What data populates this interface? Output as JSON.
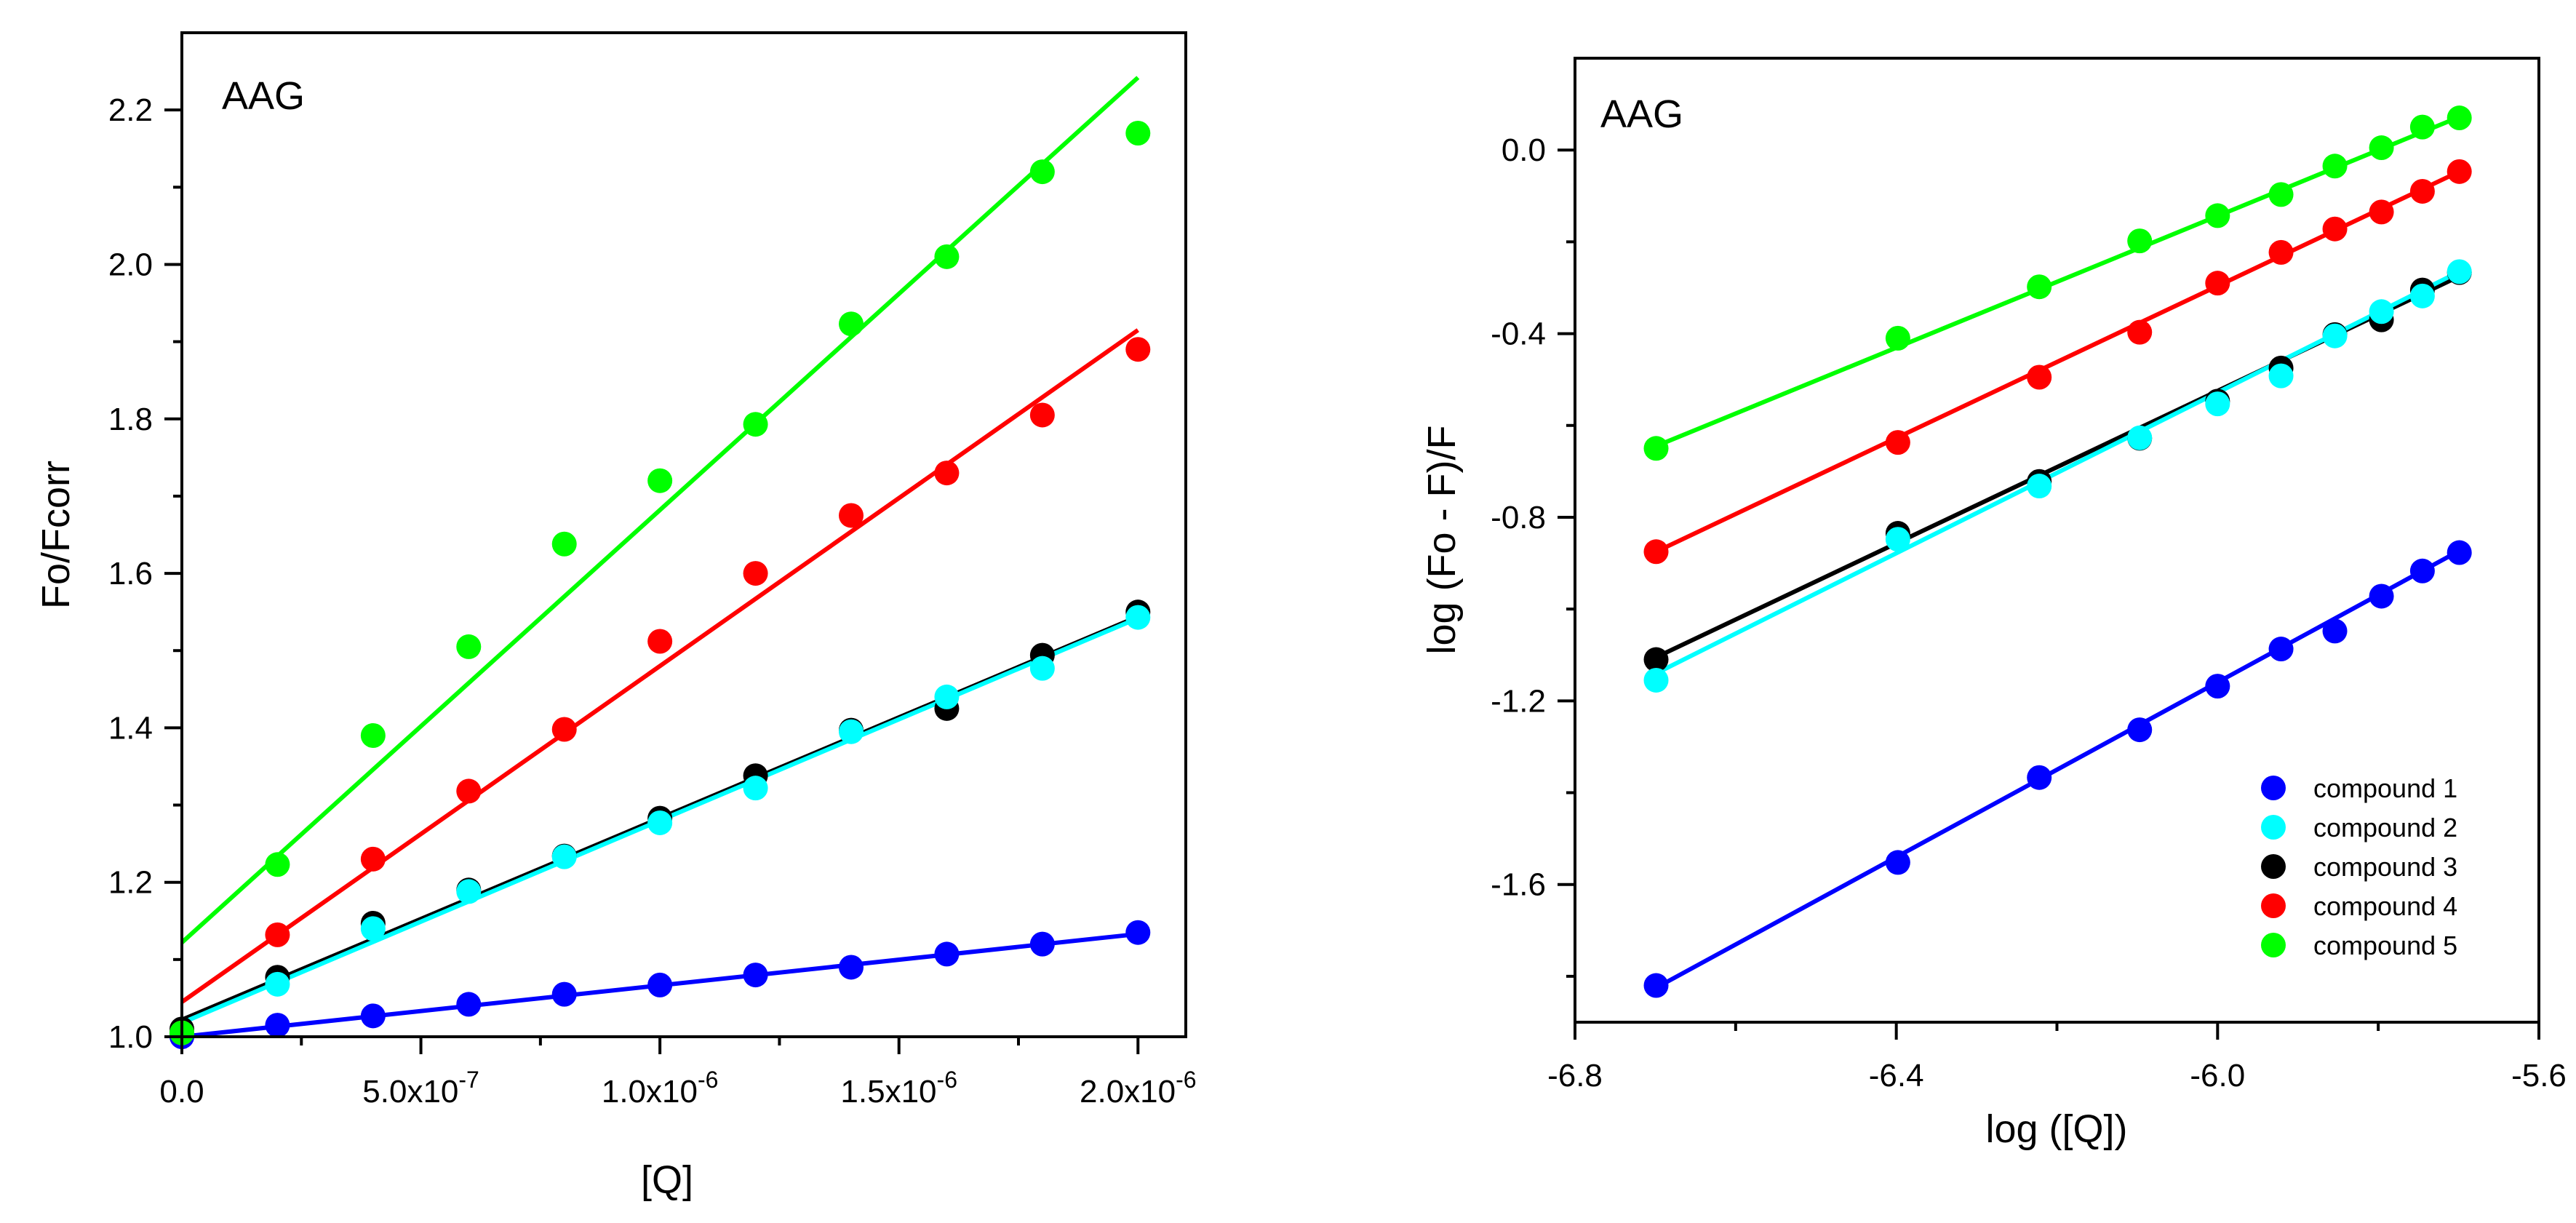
{
  "chart_data": [
    {
      "type": "scatter",
      "title": "AAG",
      "xlabel": "[Q]",
      "ylabel": "Fo/Fcorr",
      "xlim": [
        0,
        2.1e-06
      ],
      "ylim": [
        1.0,
        2.3
      ],
      "x_ticks": [
        0,
        5e-07,
        1e-06,
        1.5e-06,
        2e-06
      ],
      "x_tick_labels": [
        {
          "mantissa": "0.0",
          "exp": ""
        },
        {
          "mantissa": "5.0x10",
          "exp": "-7"
        },
        {
          "mantissa": "1.0x10",
          "exp": "-6"
        },
        {
          "mantissa": "1.5x10",
          "exp": "-6"
        },
        {
          "mantissa": "2.0x10",
          "exp": "-6"
        }
      ],
      "y_ticks": [
        1.0,
        1.2,
        1.4,
        1.6,
        1.8,
        2.0,
        2.2
      ],
      "y_tick_labels": [
        "1.0",
        "1.2",
        "1.4",
        "1.6",
        "1.8",
        "2.0",
        "2.2"
      ],
      "x": [
        0,
        2e-07,
        4e-07,
        6e-07,
        8e-07,
        1e-06,
        1.2e-06,
        1.4e-06,
        1.6e-06,
        1.8e-06,
        2e-06
      ],
      "series": [
        {
          "name": "compound 1",
          "color": "#0000ff",
          "values": [
            1.0,
            1.015,
            1.027,
            1.042,
            1.055,
            1.067,
            1.08,
            1.09,
            1.107,
            1.12,
            1.135
          ],
          "fit": {
            "intercept": 1.0,
            "slope": 66500
          }
        },
        {
          "name": "compound 3",
          "color": "#000000",
          "values": [
            1.01,
            1.077,
            1.147,
            1.19,
            1.234,
            1.283,
            1.338,
            1.397,
            1.425,
            1.494,
            1.55
          ],
          "fit": {
            "intercept": 1.022,
            "slope": 261000
          }
        },
        {
          "name": "compound 2",
          "color": "#00ffff",
          "values": [
            1.005,
            1.068,
            1.14,
            1.188,
            1.233,
            1.277,
            1.322,
            1.395,
            1.44,
            1.477,
            1.543
          ],
          "fit": {
            "intercept": 1.018,
            "slope": 262000
          }
        },
        {
          "name": "compound 4",
          "color": "#ff0000",
          "values": [
            1.005,
            1.132,
            1.23,
            1.318,
            1.398,
            1.512,
            1.6,
            1.675,
            1.73,
            1.805,
            1.89
          ],
          "fit": {
            "intercept": 1.045,
            "slope": 435000
          }
        },
        {
          "name": "compound 5",
          "color": "#00ff00",
          "values": [
            1.005,
            1.223,
            1.39,
            1.505,
            1.638,
            1.72,
            1.793,
            1.923,
            2.01,
            2.12,
            2.17
          ],
          "fit": {
            "intercept": 1.122,
            "slope": 560000
          }
        }
      ]
    },
    {
      "type": "scatter",
      "title": "AAG",
      "xlabel": "log ([Q])",
      "ylabel": "log (Fo - F)/F",
      "xlim": [
        -6.8,
        -5.6
      ],
      "ylim": [
        -1.9,
        0.2
      ],
      "x_ticks": [
        -6.8,
        -6.4,
        -6.0,
        -5.6
      ],
      "x_tick_labels": [
        "-6.8",
        "-6.4",
        "-6.0",
        "-5.6"
      ],
      "y_ticks": [
        -1.6,
        -1.2,
        -0.8,
        -0.4,
        0.0
      ],
      "y_tick_labels": [
        "-1.6",
        "-1.2",
        "-0.8",
        "-0.4",
        "0.0"
      ],
      "x": [
        -6.699,
        -6.398,
        -6.222,
        -6.097,
        -6.0,
        -5.921,
        -5.854,
        -5.796,
        -5.745,
        -5.699
      ],
      "series": [
        {
          "name": "compound 1",
          "color": "#0000ff",
          "values": [
            -1.82,
            -1.552,
            -1.367,
            -1.263,
            -1.168,
            -1.087,
            -1.048,
            -0.972,
            -0.917,
            -0.877
          ],
          "fit": {
            "x0": -6.699,
            "y0": -1.825,
            "x1": -5.699,
            "y1": -0.873
          }
        },
        {
          "name": "compound 3",
          "color": "#000000",
          "values": [
            -1.11,
            -0.835,
            -0.722,
            -0.628,
            -0.547,
            -0.475,
            -0.402,
            -0.37,
            -0.305,
            -0.267
          ],
          "fit": {
            "x0": -6.699,
            "y0": -1.105,
            "x1": -5.699,
            "y1": -0.275
          }
        },
        {
          "name": "compound 2",
          "color": "#00ffff",
          "values": [
            -1.155,
            -0.848,
            -0.732,
            -0.627,
            -0.553,
            -0.492,
            -0.405,
            -0.352,
            -0.318,
            -0.265
          ],
          "fit": {
            "x0": -6.699,
            "y0": -1.14,
            "x1": -5.699,
            "y1": -0.265
          }
        },
        {
          "name": "compound 4",
          "color": "#ff0000",
          "values": [
            -0.875,
            -0.637,
            -0.495,
            -0.397,
            -0.29,
            -0.223,
            -0.172,
            -0.135,
            -0.09,
            -0.047
          ],
          "fit": {
            "x0": -6.699,
            "y0": -0.875,
            "x1": -5.699,
            "y1": -0.047
          }
        },
        {
          "name": "compound 5",
          "color": "#00ff00",
          "values": [
            -0.65,
            -0.41,
            -0.298,
            -0.198,
            -0.143,
            -0.097,
            -0.035,
            0.005,
            0.05,
            0.07
          ],
          "fit": {
            "x0": -6.699,
            "y0": -0.645,
            "x1": -5.699,
            "y1": 0.072
          }
        }
      ],
      "legend": {
        "position": "bottom-right",
        "entries": [
          {
            "label": "compound 1",
            "color": "#0000ff"
          },
          {
            "label": "compound 2",
            "color": "#00ffff"
          },
          {
            "label": "compound 3",
            "color": "#000000"
          },
          {
            "label": "compound 4",
            "color": "#ff0000"
          },
          {
            "label": "compound 5",
            "color": "#00ff00"
          }
        ]
      }
    }
  ]
}
